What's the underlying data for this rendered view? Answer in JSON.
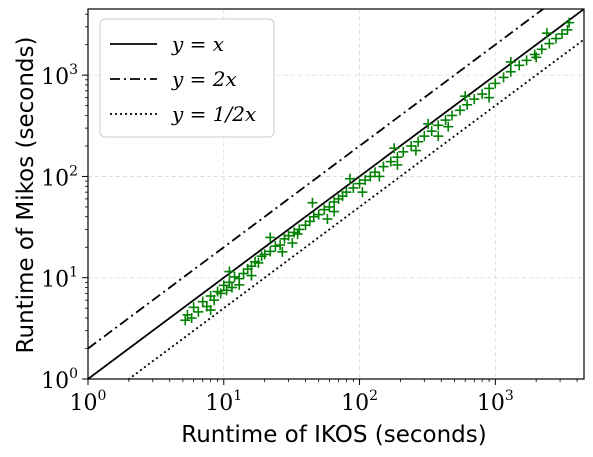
{
  "chart_data": {
    "type": "scatter",
    "xlabel": "Runtime of IKOS (seconds)",
    "ylabel": "Runtime of Mikos (seconds)",
    "xscale": "log",
    "yscale": "log",
    "xlim": [
      1,
      4500
    ],
    "ylim": [
      1,
      4500
    ],
    "x_ticks": [
      {
        "value": 1,
        "base": "10",
        "exp": "0"
      },
      {
        "value": 10,
        "base": "10",
        "exp": "1"
      },
      {
        "value": 100,
        "base": "10",
        "exp": "2"
      },
      {
        "value": 1000,
        "base": "10",
        "exp": "3"
      }
    ],
    "y_ticks": [
      {
        "value": 1,
        "base": "10",
        "exp": "0"
      },
      {
        "value": 10,
        "base": "10",
        "exp": "1"
      },
      {
        "value": 100,
        "base": "10",
        "exp": "2"
      },
      {
        "value": 1000,
        "base": "10",
        "exp": "3"
      }
    ],
    "grid": true,
    "legend_position": "top-left",
    "reference_lines": [
      {
        "label": "y = x",
        "slope": 1,
        "style": "solid"
      },
      {
        "label": "y = 2x",
        "slope": 2,
        "style": "dashdot"
      },
      {
        "label": "y = 1/2x",
        "slope": 0.5,
        "style": "dotted"
      }
    ],
    "series": [
      {
        "marker": "+",
        "color": "#008000",
        "points": [
          [
            5.2,
            3.8
          ],
          [
            5.4,
            4.3
          ],
          [
            5.8,
            4.0
          ],
          [
            6.0,
            5.1
          ],
          [
            6.5,
            4.6
          ],
          [
            7.0,
            5.8
          ],
          [
            7.5,
            5.2
          ],
          [
            8.0,
            6.6
          ],
          [
            8.5,
            6.0
          ],
          [
            9.0,
            7.3
          ],
          [
            9.5,
            7.0
          ],
          [
            10.0,
            8.4
          ],
          [
            10.5,
            7.5
          ],
          [
            11.0,
            9.0
          ],
          [
            11.5,
            8.0
          ],
          [
            12.0,
            10.2
          ],
          [
            13.0,
            9.8
          ],
          [
            14.0,
            11.0
          ],
          [
            15.0,
            12.2
          ],
          [
            16.0,
            13.0
          ],
          [
            17.0,
            14.4
          ],
          [
            18.0,
            14.0
          ],
          [
            19.0,
            16.3
          ],
          [
            20.0,
            17.0
          ],
          [
            22.0,
            18.2
          ],
          [
            24.0,
            20.5
          ],
          [
            26.0,
            21.0
          ],
          [
            28.0,
            24.2
          ],
          [
            30.0,
            26.0
          ],
          [
            33.0,
            28.0
          ],
          [
            36.0,
            30.0
          ],
          [
            40.0,
            33.0
          ],
          [
            43.0,
            36.0
          ],
          [
            46.0,
            40.0
          ],
          [
            50.0,
            42.0
          ],
          [
            55.0,
            47.0
          ],
          [
            60.0,
            50.0
          ],
          [
            65.0,
            56.0
          ],
          [
            70.0,
            60.0
          ],
          [
            75.0,
            64.0
          ],
          [
            80.0,
            70.0
          ],
          [
            90.0,
            77.0
          ],
          [
            100.0,
            85.0
          ],
          [
            110.0,
            92.0
          ],
          [
            120.0,
            100.0
          ],
          [
            130.0,
            110.0
          ],
          [
            150.0,
            125.0
          ],
          [
            170.0,
            140.0
          ],
          [
            190.0,
            155.0
          ],
          [
            210.0,
            175.0
          ],
          [
            240.0,
            200.0
          ],
          [
            270.0,
            220.0
          ],
          [
            300.0,
            250.0
          ],
          [
            340.0,
            280.0
          ],
          [
            380.0,
            320.0
          ],
          [
            430.0,
            360.0
          ],
          [
            480.0,
            400.0
          ],
          [
            550.0,
            450.0
          ],
          [
            620.0,
            510.0
          ],
          [
            700.0,
            580.0
          ],
          [
            800.0,
            650.0
          ],
          [
            900.0,
            740.0
          ],
          [
            1000.0,
            830.0
          ],
          [
            1150.0,
            950.0
          ],
          [
            1300.0,
            1080.0
          ],
          [
            1500.0,
            1250.0
          ],
          [
            1700.0,
            1400.0
          ],
          [
            1950.0,
            1600.0
          ],
          [
            2200.0,
            1800.0
          ],
          [
            2500.0,
            2050.0
          ],
          [
            2800.0,
            2300.0
          ],
          [
            3100.0,
            2550.0
          ],
          [
            3400.0,
            2800.0
          ],
          [
            3500.0,
            3300.0
          ],
          [
            11.0,
            11.5
          ],
          [
            13.0,
            8.5
          ],
          [
            22.0,
            25.0
          ],
          [
            27.0,
            18.0
          ],
          [
            45.0,
            55.0
          ],
          [
            35.0,
            27.0
          ],
          [
            65.0,
            45.0
          ],
          [
            85.0,
            95.0
          ],
          [
            140.0,
            100.0
          ],
          [
            180.0,
            190.0
          ],
          [
            260.0,
            180.0
          ],
          [
            320.0,
            330.0
          ],
          [
            450.0,
            310.0
          ],
          [
            600.0,
            620.0
          ],
          [
            900.0,
            600.0
          ],
          [
            1300.0,
            1350.0
          ],
          [
            2000.0,
            1500.0
          ],
          [
            2400.0,
            2600.0
          ],
          [
            8.0,
            4.8
          ],
          [
            16.0,
            10.5
          ],
          [
            32.0,
            22.0
          ],
          [
            58.0,
            38.0
          ],
          [
            105.0,
            70.0
          ],
          [
            190.0,
            130.0
          ],
          [
            380.0,
            250.0
          ]
        ]
      }
    ]
  }
}
